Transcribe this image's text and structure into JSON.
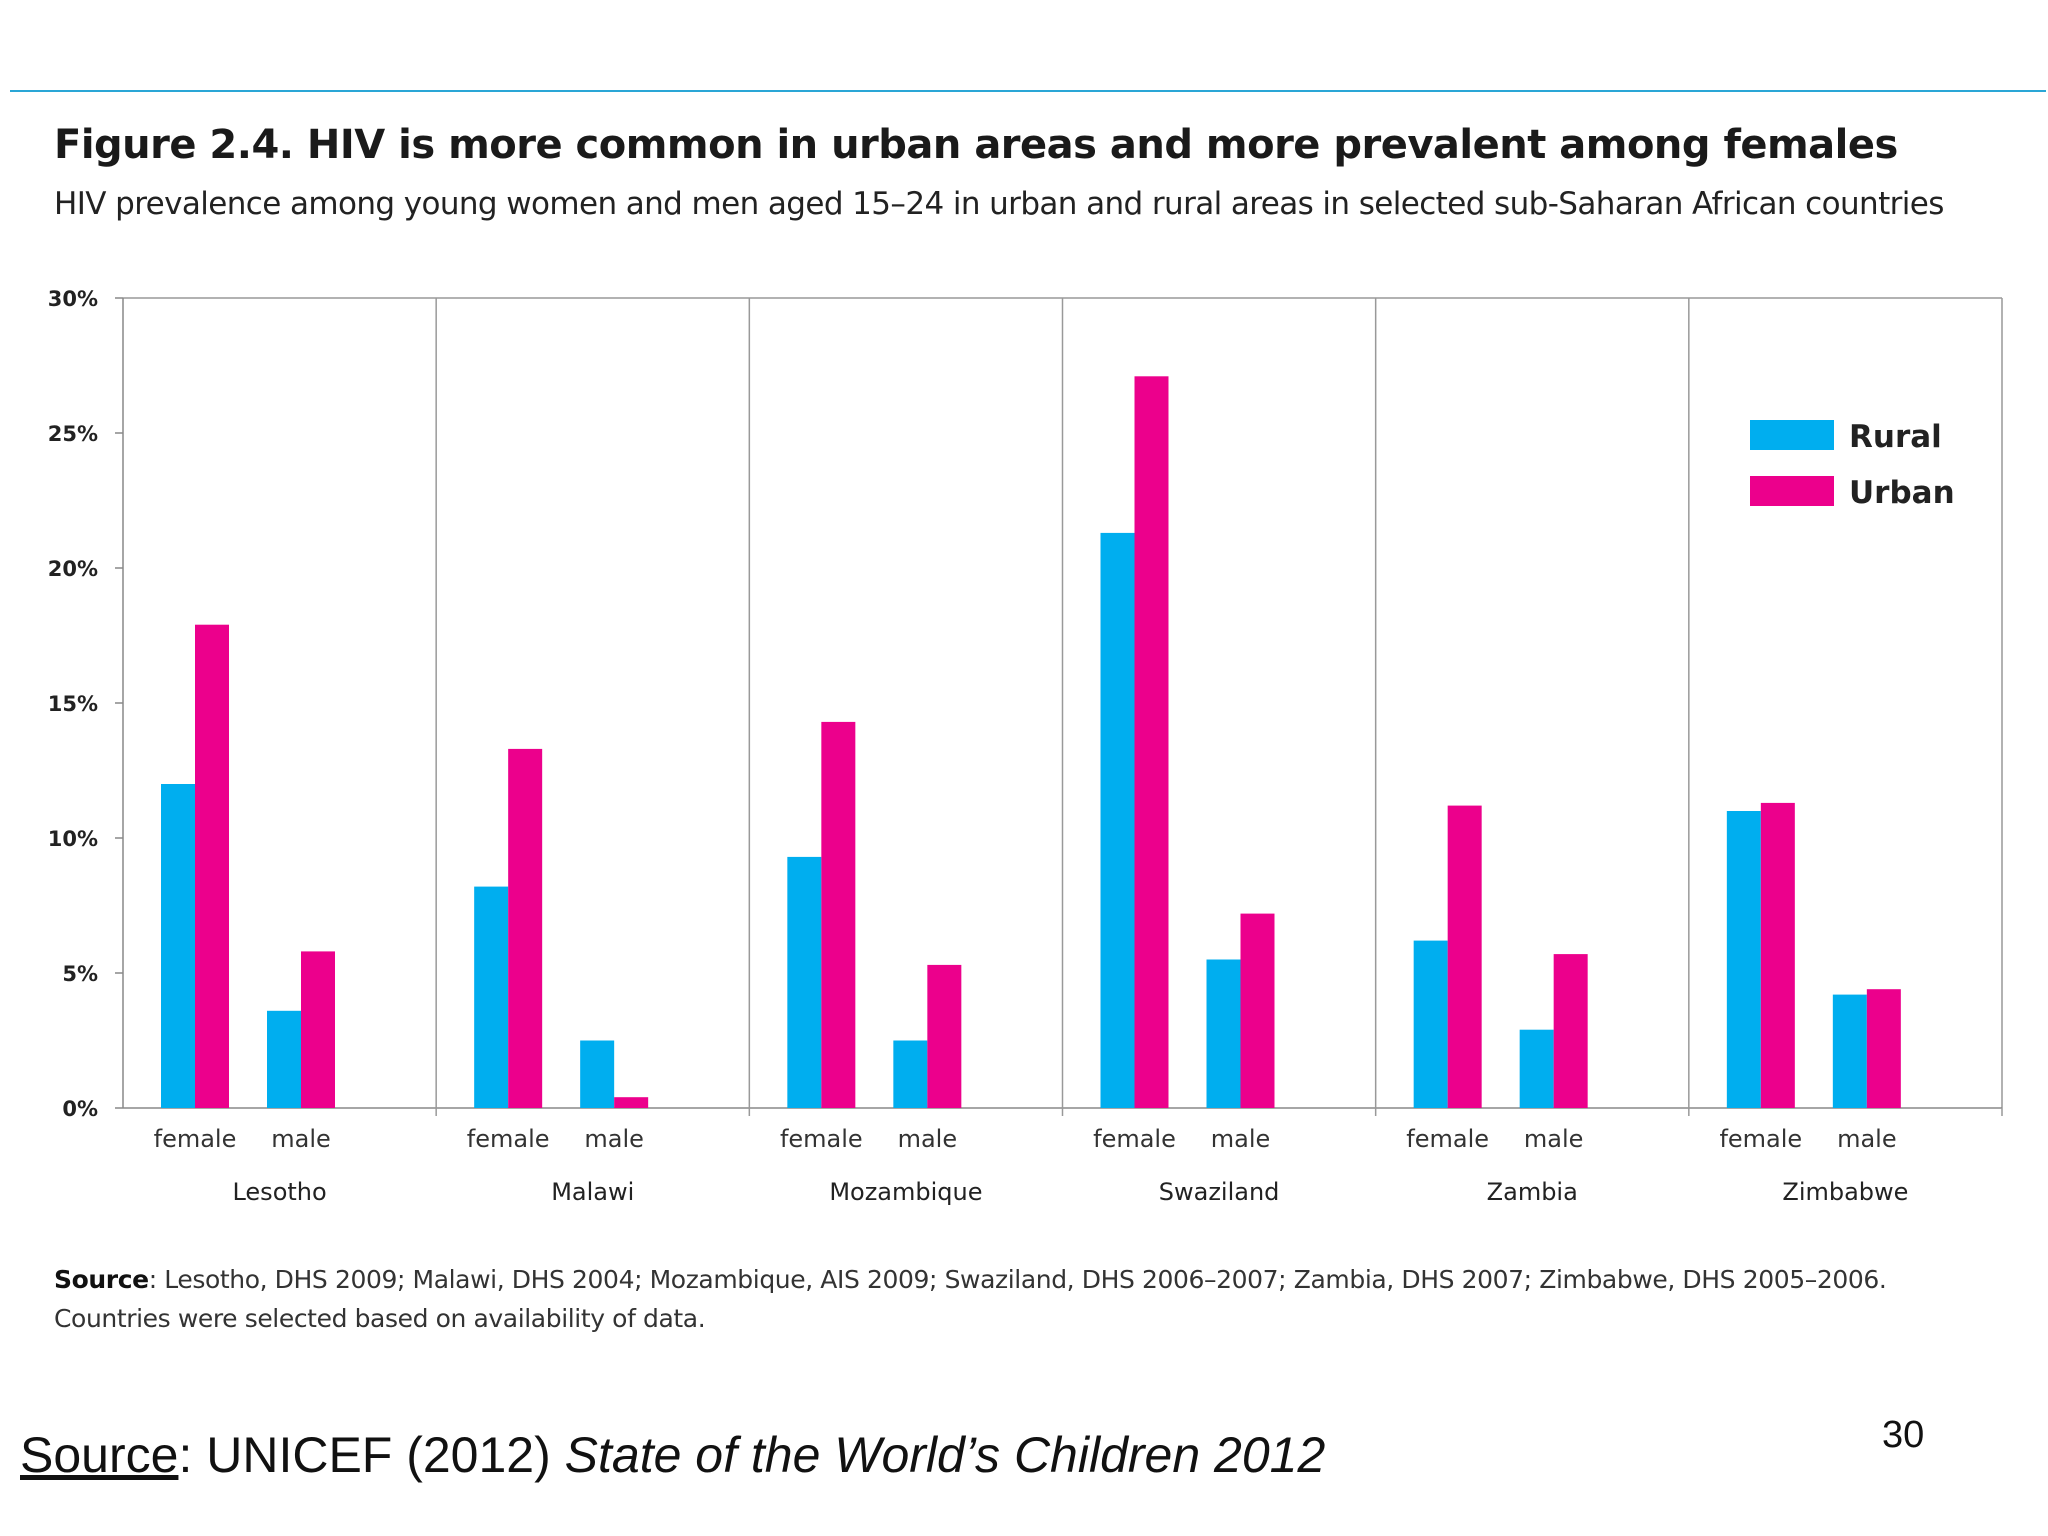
{
  "figure": {
    "title": "Figure 2.4.  HIV is more common in urban areas and more prevalent among females",
    "subtitle": "HIV prevalence among young women and men aged 15–24 in urban and rural areas in selected sub-Saharan African countries"
  },
  "chart_data": {
    "type": "bar",
    "groups": [
      "Lesotho",
      "Malawi",
      "Mozambique",
      "Swaziland",
      "Zambia",
      "Zimbabwe"
    ],
    "subcategories": [
      "female",
      "male"
    ],
    "series": [
      {
        "name": "Rural",
        "color": "#00aeef",
        "values": [
          [
            12.0,
            3.6
          ],
          [
            8.2,
            2.5
          ],
          [
            9.3,
            2.5
          ],
          [
            21.3,
            5.5
          ],
          [
            6.2,
            2.9
          ],
          [
            11.0,
            4.2
          ]
        ]
      },
      {
        "name": "Urban",
        "color": "#ec008c",
        "values": [
          [
            17.9,
            5.8
          ],
          [
            13.3,
            0.4
          ],
          [
            14.3,
            5.3
          ],
          [
            27.1,
            7.2
          ],
          [
            11.2,
            5.7
          ],
          [
            11.3,
            4.4
          ]
        ]
      }
    ],
    "y_ticks": [
      "0%",
      "5%",
      "10%",
      "15%",
      "20%",
      "25%",
      "30%"
    ],
    "ylim": [
      0,
      30
    ],
    "legend_position": "top-right",
    "grid": false
  },
  "source": {
    "label": "Source",
    "text": ": Lesotho, DHS 2009; Malawi, DHS 2004; Mozambique, AIS 2009; Swaziland, DHS 2006–2007; Zambia, DHS 2007; Zimbabwe, DHS 2005–2006.",
    "note": "Countries were selected based on availability of data."
  },
  "credit": {
    "label": "Source",
    "prefix": ": UNICEF (2012) ",
    "title": "State of the World’s Children 2012"
  },
  "page_number": "30"
}
